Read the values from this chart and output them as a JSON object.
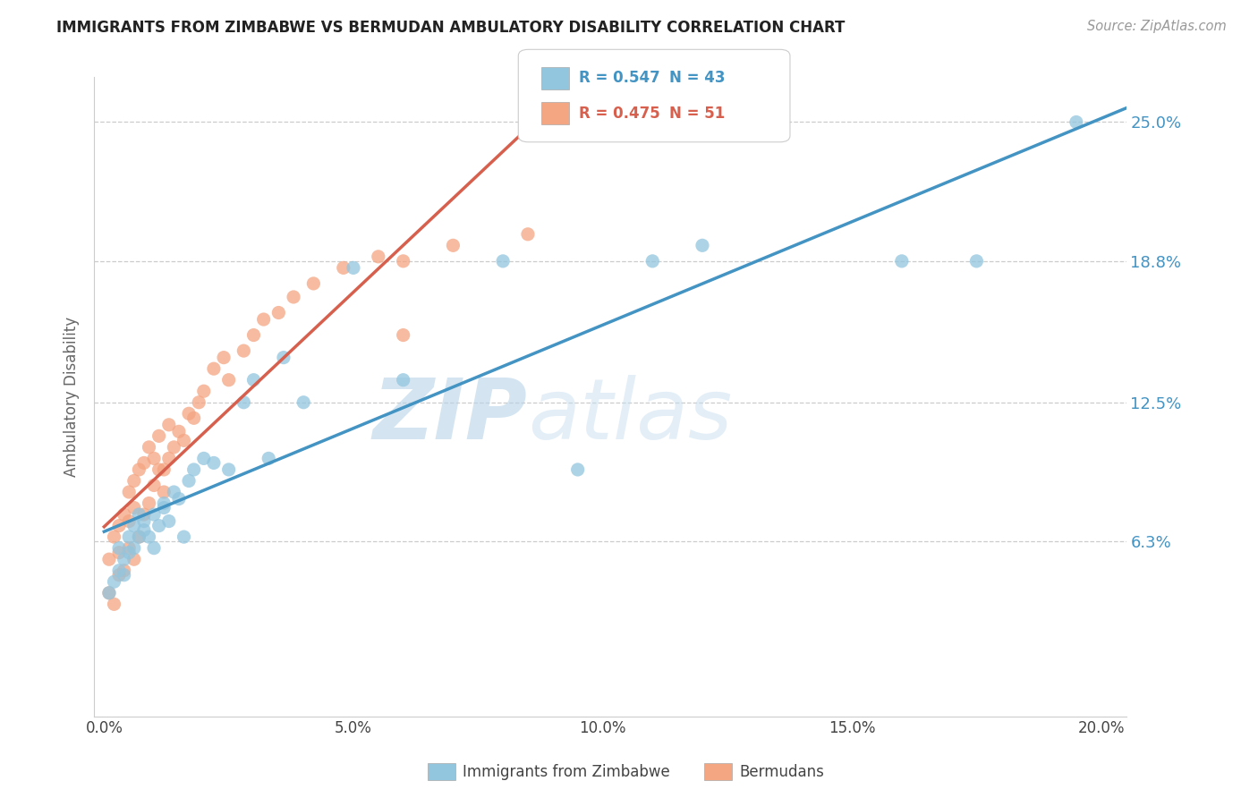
{
  "title": "IMMIGRANTS FROM ZIMBABWE VS BERMUDAN AMBULATORY DISABILITY CORRELATION CHART",
  "source_text": "Source: ZipAtlas.com",
  "ylabel": "Ambulatory Disability",
  "ytick_labels": [
    "6.3%",
    "12.5%",
    "18.8%",
    "25.0%"
  ],
  "ytick_values": [
    0.063,
    0.125,
    0.188,
    0.25
  ],
  "xtick_labels": [
    "0.0%",
    "5.0%",
    "10.0%",
    "15.0%",
    "20.0%"
  ],
  "xtick_values": [
    0.0,
    0.05,
    0.1,
    0.15,
    0.2
  ],
  "xlim": [
    -0.002,
    0.205
  ],
  "ylim": [
    -0.015,
    0.27
  ],
  "legend_blue_r": "R = 0.547",
  "legend_blue_n": "N = 43",
  "legend_pink_r": "R = 0.475",
  "legend_pink_n": "N = 51",
  "legend_blue_label": "Immigrants from Zimbabwe",
  "legend_pink_label": "Bermudans",
  "blue_color": "#92c5de",
  "pink_color": "#f4a582",
  "line_blue": "#4393c3",
  "line_pink": "#d6604d",
  "watermark_zip": "ZIP",
  "watermark_atlas": "atlas",
  "blue_scatter_x": [
    0.001,
    0.002,
    0.003,
    0.003,
    0.004,
    0.004,
    0.005,
    0.005,
    0.006,
    0.006,
    0.007,
    0.007,
    0.008,
    0.008,
    0.009,
    0.01,
    0.01,
    0.011,
    0.012,
    0.012,
    0.013,
    0.014,
    0.015,
    0.016,
    0.017,
    0.018,
    0.02,
    0.022,
    0.025,
    0.028,
    0.03,
    0.033,
    0.036,
    0.04,
    0.05,
    0.06,
    0.08,
    0.095,
    0.11,
    0.12,
    0.16,
    0.175,
    0.195
  ],
  "blue_scatter_y": [
    0.04,
    0.045,
    0.05,
    0.06,
    0.048,
    0.055,
    0.058,
    0.065,
    0.06,
    0.07,
    0.065,
    0.075,
    0.068,
    0.072,
    0.065,
    0.06,
    0.075,
    0.07,
    0.078,
    0.08,
    0.072,
    0.085,
    0.082,
    0.065,
    0.09,
    0.095,
    0.1,
    0.098,
    0.095,
    0.125,
    0.135,
    0.1,
    0.145,
    0.125,
    0.185,
    0.135,
    0.188,
    0.095,
    0.188,
    0.195,
    0.188,
    0.188,
    0.25
  ],
  "pink_scatter_x": [
    0.001,
    0.001,
    0.002,
    0.002,
    0.003,
    0.003,
    0.003,
    0.004,
    0.004,
    0.005,
    0.005,
    0.005,
    0.006,
    0.006,
    0.006,
    0.007,
    0.007,
    0.008,
    0.008,
    0.009,
    0.009,
    0.01,
    0.01,
    0.011,
    0.011,
    0.012,
    0.012,
    0.013,
    0.013,
    0.014,
    0.015,
    0.016,
    0.017,
    0.018,
    0.019,
    0.02,
    0.022,
    0.024,
    0.025,
    0.028,
    0.03,
    0.032,
    0.035,
    0.038,
    0.042,
    0.048,
    0.055,
    0.06,
    0.07,
    0.085,
    0.06
  ],
  "pink_scatter_y": [
    0.04,
    0.055,
    0.035,
    0.065,
    0.048,
    0.058,
    0.07,
    0.05,
    0.075,
    0.06,
    0.072,
    0.085,
    0.055,
    0.078,
    0.09,
    0.065,
    0.095,
    0.075,
    0.098,
    0.08,
    0.105,
    0.088,
    0.1,
    0.095,
    0.11,
    0.095,
    0.085,
    0.1,
    0.115,
    0.105,
    0.112,
    0.108,
    0.12,
    0.118,
    0.125,
    0.13,
    0.14,
    0.145,
    0.135,
    0.148,
    0.155,
    0.162,
    0.165,
    0.172,
    0.178,
    0.185,
    0.19,
    0.188,
    0.195,
    0.2,
    0.155
  ]
}
